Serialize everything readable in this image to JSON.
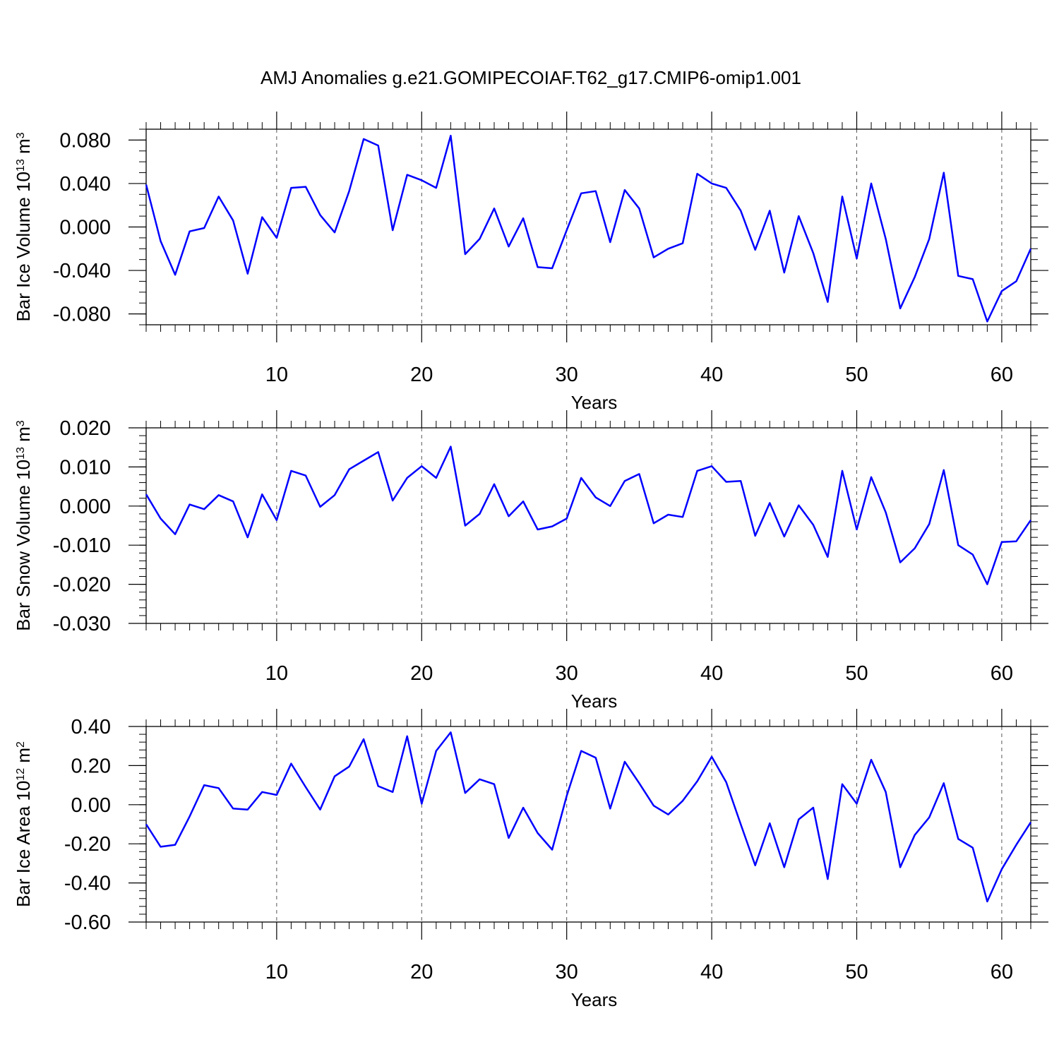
{
  "title": "AMJ Anomalies g.e21.GOMIPECOIAF.T62_g17.CMIP6-omip1.001",
  "colors": {
    "series": "#0000ff",
    "axis": "#000000",
    "grid": "#555555"
  },
  "chart_data": [
    {
      "type": "line",
      "ylabel": {
        "base": "Bar Ice Volume 10",
        "sup": "13",
        "unit": " m",
        "unit_sup": "3"
      },
      "xlabel": "Years",
      "xlim": [
        1,
        62
      ],
      "ylim": [
        -0.09,
        0.09
      ],
      "xticks": [
        10,
        20,
        30,
        40,
        50,
        60
      ],
      "xtick_labels": [
        "10",
        "20",
        "30",
        "40",
        "50",
        "60"
      ],
      "yticks": [
        0.08,
        0.04,
        0.0,
        -0.04,
        -0.08
      ],
      "ytick_labels": [
        "0.080",
        "0.040",
        "0.000",
        "-0.040",
        "-0.080"
      ],
      "y_minor_step": 0.01,
      "grid": "x dashed",
      "x": [
        1,
        2,
        3,
        4,
        5,
        6,
        7,
        8,
        9,
        10,
        11,
        12,
        13,
        14,
        15,
        16,
        17,
        18,
        19,
        20,
        21,
        22,
        23,
        24,
        25,
        26,
        27,
        28,
        29,
        30,
        31,
        32,
        33,
        34,
        35,
        36,
        37,
        38,
        39,
        40,
        41,
        42,
        43,
        44,
        45,
        46,
        47,
        48,
        49,
        50,
        51,
        52,
        53,
        54,
        55,
        56,
        57,
        58,
        59,
        60,
        61,
        62
      ],
      "series": [
        {
          "values": [
            0.039,
            -0.013,
            -0.044,
            -0.004,
            -0.001,
            0.028,
            0.006,
            -0.043,
            0.009,
            -0.01,
            0.036,
            0.037,
            0.011,
            -0.005,
            0.033,
            0.081,
            0.075,
            -0.003,
            0.048,
            0.043,
            0.036,
            0.084,
            -0.025,
            -0.011,
            0.017,
            -0.018,
            0.008,
            -0.037,
            -0.038,
            -0.003,
            0.031,
            0.033,
            -0.014,
            0.034,
            0.017,
            -0.028,
            -0.02,
            -0.015,
            0.049,
            0.04,
            0.036,
            0.015,
            -0.021,
            0.015,
            -0.042,
            0.01,
            -0.024,
            -0.069,
            0.028,
            -0.029,
            0.04,
            -0.011,
            -0.075,
            -0.046,
            -0.011,
            0.05,
            -0.045,
            -0.048,
            -0.087,
            -0.059,
            -0.05,
            -0.02
          ]
        }
      ]
    },
    {
      "type": "line",
      "ylabel": {
        "base": "Bar Snow Volume 10",
        "sup": "13",
        "unit": " m",
        "unit_sup": "3"
      },
      "xlabel": "Years",
      "xlim": [
        1,
        62
      ],
      "ylim": [
        -0.03,
        0.02
      ],
      "xticks": [
        10,
        20,
        30,
        40,
        50,
        60
      ],
      "xtick_labels": [
        "10",
        "20",
        "30",
        "40",
        "50",
        "60"
      ],
      "yticks": [
        0.02,
        0.01,
        0.0,
        -0.01,
        -0.02,
        -0.03
      ],
      "ytick_labels": [
        "0.020",
        "0.010",
        "0.000",
        "-0.010",
        "-0.020",
        "-0.030"
      ],
      "y_minor_step": 0.002,
      "grid": "x dashed",
      "x": [
        1,
        2,
        3,
        4,
        5,
        6,
        7,
        8,
        9,
        10,
        11,
        12,
        13,
        14,
        15,
        16,
        17,
        18,
        19,
        20,
        21,
        22,
        23,
        24,
        25,
        26,
        27,
        28,
        29,
        30,
        31,
        32,
        33,
        34,
        35,
        36,
        37,
        38,
        39,
        40,
        41,
        42,
        43,
        44,
        45,
        46,
        47,
        48,
        49,
        50,
        51,
        52,
        53,
        54,
        55,
        56,
        57,
        58,
        59,
        60,
        61,
        62
      ],
      "series": [
        {
          "values": [
            0.003,
            -0.0032,
            -0.0072,
            0.0004,
            -0.0008,
            0.0028,
            0.0012,
            -0.008,
            0.003,
            -0.0036,
            0.009,
            0.0078,
            -0.0002,
            0.0028,
            0.0094,
            0.0116,
            0.0138,
            0.0014,
            0.0072,
            0.0102,
            0.0072,
            0.0152,
            -0.005,
            -0.002,
            0.0056,
            -0.0026,
            0.0012,
            -0.006,
            -0.0052,
            -0.0032,
            0.0072,
            0.0022,
            0.0,
            0.0064,
            0.0082,
            -0.0044,
            -0.0022,
            -0.0028,
            0.009,
            0.0102,
            0.0062,
            0.0064,
            -0.0076,
            0.0008,
            -0.0078,
            0.0002,
            -0.0048,
            -0.013,
            0.009,
            -0.006,
            0.0074,
            -0.0016,
            -0.0144,
            -0.0108,
            -0.0046,
            0.0092,
            -0.01,
            -0.0124,
            -0.02,
            -0.0092,
            -0.009,
            -0.0036
          ]
        }
      ]
    },
    {
      "type": "line",
      "ylabel": {
        "base": "Bar Ice Area 10",
        "sup": "12",
        "unit": " m",
        "unit_sup": "2"
      },
      "xlabel": "Years",
      "xlim": [
        1,
        62
      ],
      "ylim": [
        -0.6,
        0.4
      ],
      "xticks": [
        10,
        20,
        30,
        40,
        50,
        60
      ],
      "xtick_labels": [
        "10",
        "20",
        "30",
        "40",
        "50",
        "60"
      ],
      "yticks": [
        0.4,
        0.2,
        0.0,
        -0.2,
        -0.4,
        -0.6
      ],
      "ytick_labels": [
        "0.40",
        "0.20",
        "0.00",
        "-0.20",
        "-0.40",
        "-0.60"
      ],
      "y_minor_step": 0.04,
      "grid": "x dashed",
      "x": [
        1,
        2,
        3,
        4,
        5,
        6,
        7,
        8,
        9,
        10,
        11,
        12,
        13,
        14,
        15,
        16,
        17,
        18,
        19,
        20,
        21,
        22,
        23,
        24,
        25,
        26,
        27,
        28,
        29,
        30,
        31,
        32,
        33,
        34,
        35,
        36,
        37,
        38,
        39,
        40,
        41,
        42,
        43,
        44,
        45,
        46,
        47,
        48,
        49,
        50,
        51,
        52,
        53,
        54,
        55,
        56,
        57,
        58,
        59,
        60,
        61,
        62
      ],
      "series": [
        {
          "values": [
            -0.1,
            -0.215,
            -0.205,
            -0.06,
            0.1,
            0.085,
            -0.02,
            -0.025,
            0.065,
            0.05,
            0.21,
            0.09,
            -0.025,
            0.145,
            0.195,
            0.335,
            0.095,
            0.065,
            0.35,
            0.005,
            0.275,
            0.37,
            0.06,
            0.13,
            0.105,
            -0.17,
            -0.015,
            -0.145,
            -0.23,
            0.045,
            0.275,
            0.24,
            -0.02,
            0.22,
            0.11,
            -0.005,
            -0.05,
            0.02,
            0.12,
            0.245,
            0.115,
            -0.1,
            -0.31,
            -0.095,
            -0.32,
            -0.075,
            -0.015,
            -0.38,
            0.105,
            0.005,
            0.23,
            0.065,
            -0.32,
            -0.155,
            -0.065,
            0.11,
            -0.175,
            -0.22,
            -0.495,
            -0.33,
            -0.205,
            -0.09
          ]
        }
      ]
    }
  ]
}
